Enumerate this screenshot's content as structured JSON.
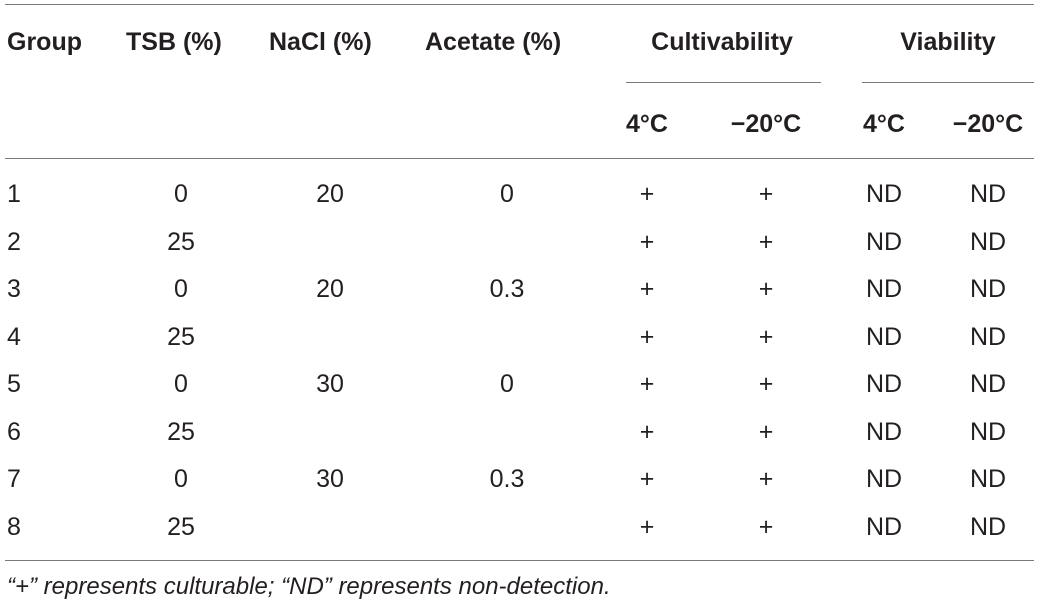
{
  "headers": {
    "group": "Group",
    "tsb": "TSB (%)",
    "nacl": "NaCl (%)",
    "acetate": "Acetate (%)",
    "cultivability": "Cultivability",
    "viability": "Viability",
    "cult_4c": "4°C",
    "cult_m20c": "−20°C",
    "via_4c": "4°C",
    "via_m20c": "−20°C"
  },
  "rows": [
    {
      "group": "1",
      "tsb": "0",
      "nacl": "20",
      "acetate": "0",
      "cult_4c": "+",
      "cult_m20c": "+",
      "via_4c": "ND",
      "via_m20c": "ND"
    },
    {
      "group": "2",
      "tsb": "25",
      "nacl": "",
      "acetate": "",
      "cult_4c": "+",
      "cult_m20c": "+",
      "via_4c": "ND",
      "via_m20c": "ND"
    },
    {
      "group": "3",
      "tsb": "0",
      "nacl": "20",
      "acetate": "0.3",
      "cult_4c": "+",
      "cult_m20c": "+",
      "via_4c": "ND",
      "via_m20c": "ND"
    },
    {
      "group": "4",
      "tsb": "25",
      "nacl": "",
      "acetate": "",
      "cult_4c": "+",
      "cult_m20c": "+",
      "via_4c": "ND",
      "via_m20c": "ND"
    },
    {
      "group": "5",
      "tsb": "0",
      "nacl": "30",
      "acetate": "0",
      "cult_4c": "+",
      "cult_m20c": "+",
      "via_4c": "ND",
      "via_m20c": "ND"
    },
    {
      "group": "6",
      "tsb": "25",
      "nacl": "",
      "acetate": "",
      "cult_4c": "+",
      "cult_m20c": "+",
      "via_4c": "ND",
      "via_m20c": "ND"
    },
    {
      "group": "7",
      "tsb": "0",
      "nacl": "30",
      "acetate": "0.3",
      "cult_4c": "+",
      "cult_m20c": "+",
      "via_4c": "ND",
      "via_m20c": "ND"
    },
    {
      "group": "8",
      "tsb": "25",
      "nacl": "",
      "acetate": "",
      "cult_4c": "+",
      "cult_m20c": "+",
      "via_4c": "ND",
      "via_m20c": "ND"
    }
  ],
  "footnote": "“+” represents culturable; “ND” represents non-detection."
}
